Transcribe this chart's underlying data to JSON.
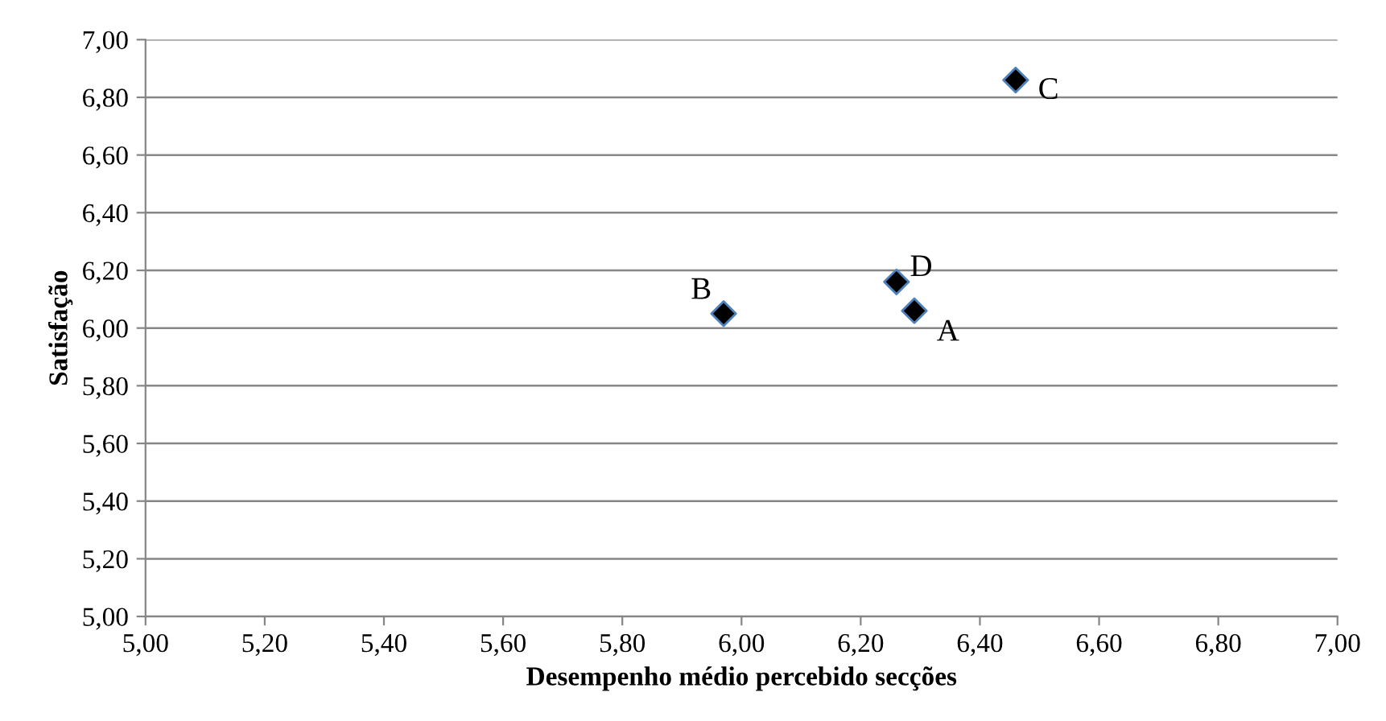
{
  "chart_data": {
    "type": "scatter",
    "xlabel": "Desempenho médio percebido secções",
    "ylabel": "Satisfação",
    "series": [
      {
        "color": "#000000",
        "x": [
          6.29,
          5.97,
          6.46,
          6.26
        ],
        "values": [
          6.06,
          6.05,
          6.86,
          6.16
        ]
      }
    ],
    "marker": "diamond",
    "annotations": [
      {
        "text": "A",
        "x": 6.29,
        "y": 6.06
      },
      {
        "text": "B",
        "x": 5.97,
        "y": 6.05
      },
      {
        "text": "C",
        "x": 6.46,
        "y": 6.86
      },
      {
        "text": "D",
        "x": 6.26,
        "y": 6.16
      }
    ],
    "xlim": [
      5.0,
      7.0
    ],
    "xticks": [
      {
        "value": 5.0,
        "label": "5,00"
      },
      {
        "value": 5.2,
        "label": "5,20"
      },
      {
        "value": 5.4,
        "label": "5,40"
      },
      {
        "value": 5.6,
        "label": "5,60"
      },
      {
        "value": 5.8,
        "label": "5,80"
      },
      {
        "value": 6.0,
        "label": "6,00"
      },
      {
        "value": 6.2,
        "label": "6,20"
      },
      {
        "value": 6.4,
        "label": "6,40"
      },
      {
        "value": 6.6,
        "label": "6,60"
      },
      {
        "value": 6.8,
        "label": "6,80"
      },
      {
        "value": 7.0,
        "label": "7,00"
      }
    ],
    "ylim": [
      5.0,
      7.0
    ],
    "yticks": [
      {
        "value": 5.0,
        "label": "5,00"
      },
      {
        "value": 5.2,
        "label": "5,20"
      },
      {
        "value": 5.4,
        "label": "5,40"
      },
      {
        "value": 5.6,
        "label": "5,60"
      },
      {
        "value": 5.8,
        "label": "5,80"
      },
      {
        "value": 6.0,
        "label": "6,00"
      },
      {
        "value": 6.2,
        "label": "6,20"
      },
      {
        "value": 6.4,
        "label": "6,40"
      },
      {
        "value": 6.6,
        "label": "6,60"
      },
      {
        "value": 6.8,
        "label": "6,80"
      },
      {
        "value": 7.0,
        "label": "7,00"
      }
    ],
    "grid": "y"
  }
}
